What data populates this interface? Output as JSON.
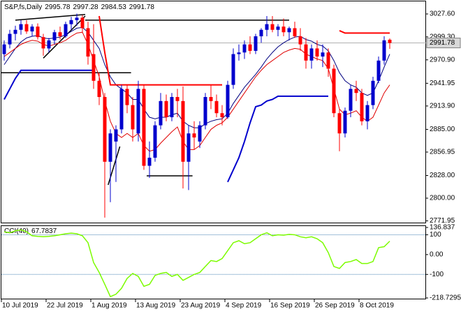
{
  "chart_data": [
    {
      "type": "candlestick",
      "title": "S&P,fs,Daily",
      "categories": [
        "10 Jul 2019",
        null,
        null,
        null,
        null,
        null,
        null,
        null,
        "22 Jul 2019",
        null,
        null,
        null,
        null,
        null,
        null,
        null,
        "1 Aug 2019",
        null,
        null,
        null,
        null,
        null,
        null,
        null,
        "13 Aug 2019",
        null,
        null,
        null,
        null,
        null,
        null,
        null,
        "23 Aug 2019",
        null,
        null,
        null,
        null,
        null,
        null,
        null,
        "4 Sep 2019",
        null,
        null,
        null,
        null,
        null,
        null,
        null,
        "16 Sep 2019",
        null,
        null,
        null,
        null,
        null,
        null,
        null,
        "26 Sep 2019",
        null,
        null,
        null,
        null,
        null,
        null,
        null,
        "8 Oct 2019",
        null,
        null,
        null,
        null,
        null
      ],
      "ohlc": [
        [
          2978,
          2995,
          2970,
          2990
        ],
        [
          2990,
          3008,
          2985,
          3003
        ],
        [
          3003,
          3013,
          2995,
          3008
        ],
        [
          3008,
          3020,
          3002,
          3015
        ],
        [
          3015,
          3020,
          3003,
          3006
        ],
        [
          3006,
          3015,
          3000,
          3012
        ],
        [
          3012,
          3016,
          2996,
          2999
        ],
        [
          2999,
          3003,
          2976,
          2985
        ],
        [
          2985,
          2998,
          2980,
          2995
        ],
        [
          2995,
          3008,
          2990,
          3005
        ],
        [
          3005,
          3012,
          2996,
          3000
        ],
        [
          3000,
          3018,
          2998,
          3015
        ],
        [
          3015,
          3024,
          3008,
          3020
        ],
        [
          3020,
          3028,
          3013,
          3023
        ],
        [
          3023,
          3026,
          3005,
          3010
        ],
        [
          3010,
          3018,
          2965,
          2975
        ],
        [
          2978,
          3015,
          2935,
          2945
        ],
        [
          2945,
          2955,
          2915,
          2925
        ],
        [
          2925,
          2930,
          2776,
          2845
        ],
        [
          2845,
          2885,
          2795,
          2880
        ],
        [
          2870,
          2890,
          2820,
          2885
        ],
        [
          2885,
          2940,
          2880,
          2935
        ],
        [
          2935,
          2940,
          2905,
          2915
        ],
        [
          2915,
          2925,
          2870,
          2885
        ],
        [
          2880,
          2945,
          2870,
          2935
        ],
        [
          2935,
          2940,
          2835,
          2840
        ],
        [
          2840,
          2870,
          2825,
          2850
        ],
        [
          2850,
          2895,
          2845,
          2890
        ],
        [
          2890,
          2930,
          2885,
          2920
        ],
        [
          2920,
          2928,
          2895,
          2900
        ],
        [
          2900,
          2930,
          2895,
          2925
        ],
        [
          2925,
          2935,
          2900,
          2920
        ],
        [
          2920,
          2938,
          2812,
          2845
        ],
        [
          2845,
          2890,
          2810,
          2880
        ],
        [
          2880,
          2895,
          2860,
          2875
        ],
        [
          2870,
          2895,
          2862,
          2890
        ],
        [
          2890,
          2930,
          2885,
          2925
        ],
        [
          2925,
          2940,
          2910,
          2920
        ],
        [
          2920,
          2928,
          2900,
          2905
        ],
        [
          2905,
          2915,
          2890,
          2900
        ],
        [
          2900,
          2945,
          2898,
          2940
        ],
        [
          2940,
          2985,
          2935,
          2978
        ],
        [
          2978,
          2990,
          2970,
          2980
        ],
        [
          2980,
          2995,
          2972,
          2990
        ],
        [
          2990,
          3000,
          2978,
          2982
        ],
        [
          2982,
          3003,
          2978,
          3000
        ],
        [
          3000,
          3010,
          2992,
          3008
        ],
        [
          3008,
          3025,
          3000,
          3015
        ],
        [
          3015,
          3025,
          3005,
          3008
        ],
        [
          3008,
          3015,
          3000,
          3012
        ],
        [
          3012,
          3022,
          3000,
          3005
        ],
        [
          3005,
          3012,
          2995,
          3010
        ],
        [
          3010,
          3018,
          2998,
          3000
        ],
        [
          3000,
          3010,
          2982,
          2990
        ],
        [
          2990,
          2998,
          2960,
          2970
        ],
        [
          2970,
          2990,
          2960,
          2985
        ],
        [
          2985,
          2995,
          2970,
          2975
        ],
        [
          2975,
          2990,
          2962,
          2980
        ],
        [
          2980,
          2985,
          2950,
          2960
        ],
        [
          2960,
          2965,
          2900,
          2905
        ],
        [
          2905,
          2910,
          2858,
          2880
        ],
        [
          2880,
          2912,
          2875,
          2908
        ],
        [
          2908,
          2940,
          2900,
          2935
        ],
        [
          2935,
          2945,
          2920,
          2930
        ],
        [
          2930,
          2935,
          2890,
          2895
        ],
        [
          2895,
          2920,
          2885,
          2915
        ],
        [
          2915,
          2950,
          2910,
          2945
        ],
        [
          2945,
          2975,
          2942,
          2970
        ],
        [
          2970,
          3000,
          2965,
          2995
        ],
        [
          2995.78,
          2997.28,
          2984.53,
          2991.78
        ]
      ],
      "up_color": "#0000cd",
      "down_color": "#ff0000",
      "ylim": [
        2770.69,
        3043.12
      ],
      "yticks": [
        {
          "value": 3027.6,
          "label": "3027.60"
        },
        {
          "value": 2999.3,
          "label": "2999.30"
        },
        {
          "value": 2970.9,
          "label": "2970.90"
        },
        2941.95,
        {
          "value": 2913.9,
          "label": "2913.90"
        },
        {
          "value": 2885,
          "label": "2885.00"
        },
        2856.95,
        {
          "value": 2828,
          "label": "2828.00"
        },
        {
          "value": 2800,
          "label": "2800.00"
        },
        2771.95
      ],
      "grid": false,
      "overlays": [
        {
          "color": "#000080",
          "values": [
            2965,
            2975,
            2985,
            2993,
            2998,
            3000,
            3001,
            2998,
            2997,
            2998,
            2999,
            3002,
            3006,
            3010,
            3011,
            3005,
            2995,
            2985,
            2965,
            2950,
            2940,
            2935,
            2930,
            2922,
            2922,
            2910,
            2900,
            2898,
            2900,
            2900,
            2903,
            2905,
            2895,
            2890,
            2887,
            2887,
            2892,
            2895,
            2897,
            2898,
            2905,
            2917,
            2927,
            2937,
            2945,
            2953,
            2962,
            2972,
            2980,
            2987,
            2992,
            2996,
            2999,
            3000,
            2996,
            2994,
            2990,
            2988,
            2982,
            2970,
            2955,
            2945,
            2940,
            2937,
            2930,
            2927,
            2930,
            2945,
            2962,
            2978
          ]
        },
        {
          "color": "#e00000",
          "values": [
            2975,
            2980,
            2985,
            2990,
            2993,
            2995,
            2994,
            2990,
            2988,
            2990,
            2992,
            2995,
            3000,
            3004,
            3005,
            2990,
            2970,
            2950,
            2920,
            2895,
            2880,
            2875,
            2880,
            2875,
            2880,
            2865,
            2858,
            2860,
            2868,
            2875,
            2882,
            2888,
            2870,
            2860,
            2860,
            2865,
            2875,
            2885,
            2890,
            2893,
            2900,
            2910,
            2920,
            2930,
            2940,
            2950,
            2958,
            2965,
            2970,
            2975,
            2980,
            2983,
            2985,
            2984,
            2978,
            2975,
            2972,
            2970,
            2960,
            2935,
            2910,
            2903,
            2905,
            2908,
            2900,
            2895,
            2900,
            2915,
            2930,
            2940
          ]
        },
        {
          "color": "#0000cd",
          "values": [
            2922,
            2935,
            2948,
            2958,
            2958,
            2958,
            2958,
            2958,
            2958,
            2958,
            2958,
            2958,
            2958,
            2958,
            2958,
            2958,
            2958,
            null,
            null,
            null,
            null,
            null,
            null,
            null,
            null,
            null,
            null,
            null,
            null,
            null,
            null,
            null,
            null,
            null,
            null,
            null,
            null,
            null,
            null,
            null,
            2820,
            2835,
            2850,
            2870,
            2893,
            2913,
            2915,
            2920,
            2922,
            2926,
            2926,
            2926,
            2926,
            2926,
            2926,
            2926,
            2926,
            2926,
            2926,
            null,
            null,
            null,
            null,
            null,
            null,
            null,
            null,
            null,
            null,
            null
          ]
        },
        {
          "color": "#ff0000",
          "values": [
            null,
            null,
            null,
            null,
            null,
            null,
            null,
            null,
            null,
            null,
            null,
            null,
            null,
            null,
            null,
            null,
            null,
            3025,
            2980,
            2940,
            2940,
            2940,
            2940,
            2940,
            2940,
            2940,
            2940,
            2940,
            2940,
            2940,
            2940,
            2940,
            2940,
            2940,
            2940,
            2940,
            2940,
            2940,
            2940,
            2940,
            null,
            null,
            null,
            null,
            null,
            null,
            null,
            null,
            null,
            null,
            null,
            null,
            null,
            null,
            null,
            null,
            null,
            null,
            null,
            null,
            3007,
            3004,
            3004,
            3004,
            3004,
            3004,
            3004,
            3004,
            3004,
            3004
          ]
        }
      ],
      "trendlines": [
        {
          "color": "#000000",
          "points": [
            [
              2,
              3020
            ],
            [
              14.5,
              3027
            ]
          ]
        },
        {
          "color": "#000000",
          "points": [
            [
              7,
              2973
            ],
            [
              14.5,
              3025
            ]
          ]
        },
        {
          "color": "#000000",
          "points": [
            [
              14.5,
              3020
            ],
            [
              51,
              3020
            ]
          ]
        },
        {
          "color": "#000000",
          "points": [
            [
              -0.5,
              2955
            ],
            [
              22.7,
              2955
            ]
          ]
        },
        {
          "color": "#000000",
          "points": [
            [
              25.5,
              2827.6
            ],
            [
              33.7,
              2827.6
            ]
          ]
        },
        {
          "color": "#000000",
          "points": [
            [
              18.6,
              2816.4
            ],
            [
              20.7,
              2863.8
            ]
          ]
        }
      ],
      "last_price_line": true
    },
    {
      "type": "line",
      "title": "CCI(40)",
      "color": "#7cfc00",
      "values": [
        115,
        110,
        120,
        125,
        115,
        95,
        92,
        90,
        92,
        95,
        100,
        105,
        108,
        105,
        95,
        60,
        -40,
        -90,
        -150,
        -212,
        -200,
        -170,
        -120,
        -95,
        -110,
        -160,
        -150,
        -105,
        -95,
        -90,
        -110,
        -100,
        -130,
        -115,
        -100,
        -90,
        -60,
        -30,
        -35,
        -20,
        20,
        60,
        70,
        55,
        60,
        80,
        100,
        110,
        95,
        100,
        98,
        102,
        100,
        90,
        85,
        90,
        80,
        60,
        10,
        -60,
        -70,
        -40,
        -35,
        -25,
        -45,
        -45,
        -35,
        35,
        40,
        67.7837
      ],
      "ylim": [
        -218.7295,
        136.837
      ],
      "yticks": [
        136.837,
        100,
        {
          "value": 0,
          "label": "0.00"
        },
        -100,
        -218.7295
      ],
      "levels": [
        100,
        -100
      ]
    }
  ]
}
